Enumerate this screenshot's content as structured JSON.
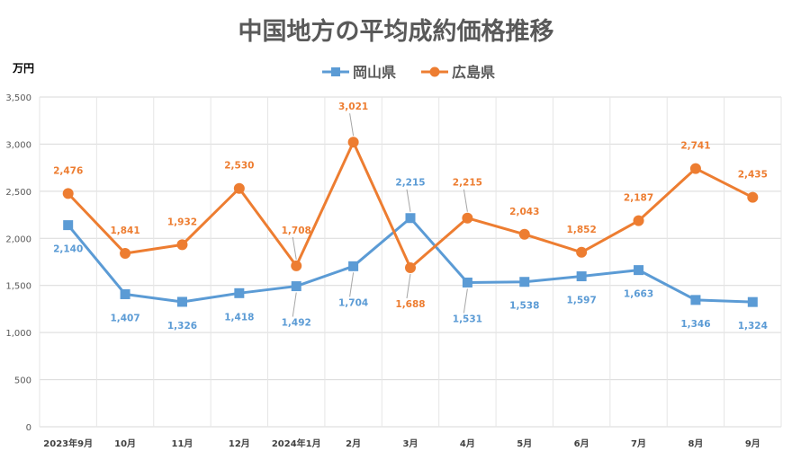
{
  "chart_data": {
    "type": "line",
    "title": "中国地方の平均成約価格推移",
    "ylabel": "万円",
    "xlabel": "",
    "ylim": [
      0,
      3500
    ],
    "yticks": [
      0,
      500,
      1000,
      1500,
      2000,
      2500,
      3000,
      3500
    ],
    "ytick_labels": [
      "0",
      "500",
      "1,000",
      "1,500",
      "2,000",
      "2,500",
      "3,000",
      "3,500"
    ],
    "grid": true,
    "legend_position": "top",
    "categories": [
      "2023年9月",
      "10月",
      "11月",
      "12月",
      "2024年1月",
      "2月",
      "3月",
      "4月",
      "5月",
      "6月",
      "7月",
      "8月",
      "9月"
    ],
    "series": [
      {
        "name": "岡山県",
        "color": "#5B9BD5",
        "marker": "square",
        "values": [
          2140,
          1407,
          1326,
          1418,
          1492,
          1704,
          2215,
          1531,
          1538,
          1597,
          1663,
          1346,
          1324
        ],
        "labels": [
          "2,140",
          "1,407",
          "1,326",
          "1,418",
          "1,492",
          "1,704",
          "2,215",
          "1,531",
          "1,538",
          "1,597",
          "1,663",
          "1,346",
          "1,324"
        ]
      },
      {
        "name": "広島県",
        "color": "#ED7D31",
        "marker": "circle",
        "values": [
          2476,
          1841,
          1932,
          2530,
          1708,
          3021,
          1688,
          2215,
          2043,
          1852,
          2187,
          2741,
          2435
        ],
        "labels": [
          "2,476",
          "1,841",
          "1,932",
          "2,530",
          "1,708",
          "3,021",
          "1,688",
          "2,215",
          "2,043",
          "1,852",
          "2,187",
          "2,741",
          "2,435"
        ]
      }
    ]
  }
}
